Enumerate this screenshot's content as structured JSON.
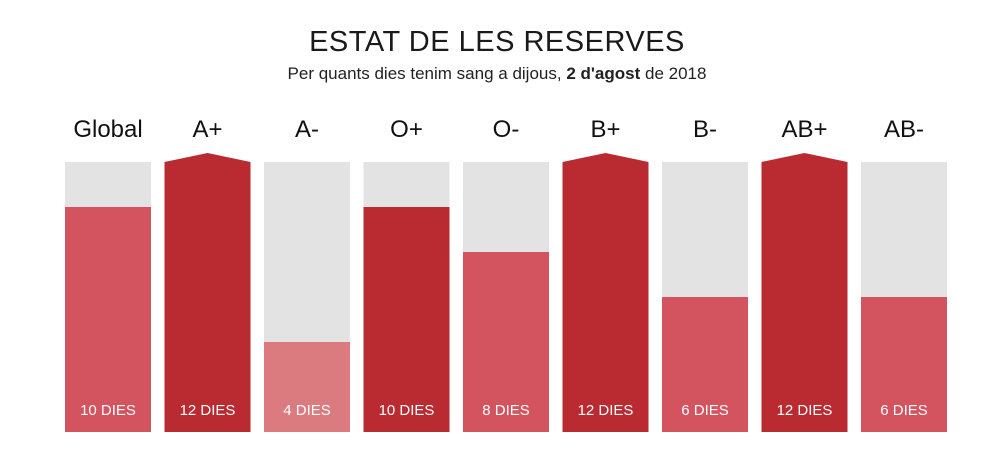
{
  "header": {
    "title": "ESTAT DE LES RESERVES",
    "subtitle_prefix": "Per quants dies tenim sang a dijous, ",
    "subtitle_date": "2 d'agost",
    "subtitle_suffix": " de 2018"
  },
  "chart_data": {
    "type": "bar",
    "title": "ESTAT DE LES RESERVES",
    "subtitle": "Per quants dies tenim sang a dijous, 2 d'agost de 2018",
    "categories": [
      "Global",
      "A+",
      "A-",
      "O+",
      "O-",
      "B+",
      "B-",
      "AB+",
      "AB-"
    ],
    "values": [
      10,
      12,
      4,
      10,
      8,
      12,
      6,
      12,
      6
    ],
    "value_labels": [
      "10 DIES",
      "12 DIES",
      "4 DIES",
      "10 DIES",
      "8 DIES",
      "12 DIES",
      "6 DIES",
      "12 DIES",
      "6 DIES"
    ],
    "ylim": [
      0,
      12
    ],
    "grid": false,
    "legend": "none",
    "colors": {
      "track": "#e3e3e3",
      "full": "#b92a31",
      "medium": "#d3545e",
      "low": "#db7b80",
      "label": "#ffffff"
    }
  }
}
